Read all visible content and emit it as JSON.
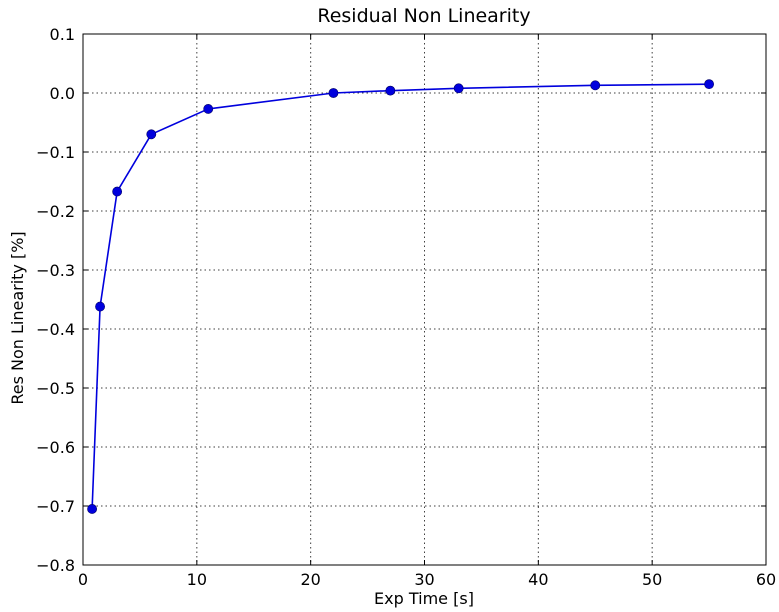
{
  "chart_data": {
    "type": "line",
    "title": "Residual Non Linearity",
    "xlabel": "Exp Time [s]",
    "ylabel": "Res Non Linearity [%]",
    "xlim": [
      0,
      60
    ],
    "ylim": [
      -0.8,
      0.1
    ],
    "xticks": [
      0,
      10,
      20,
      30,
      40,
      50,
      60
    ],
    "xtick_labels": [
      "0",
      "10",
      "20",
      "30",
      "40",
      "50",
      "60"
    ],
    "yticks": [
      0.1,
      0.0,
      -0.1,
      -0.2,
      -0.3,
      -0.4,
      -0.5,
      -0.6,
      -0.7,
      -0.8
    ],
    "ytick_labels": [
      "0.1",
      "0.0",
      "−0.1",
      "−0.2",
      "−0.3",
      "−0.4",
      "−0.5",
      "−0.6",
      "−0.7",
      "−0.8"
    ],
    "grid": true,
    "series": [
      {
        "color": "#0000dd",
        "marker": "circle",
        "x": [
          0.8,
          1.5,
          3.0,
          6.0,
          11.0,
          22.0,
          27.0,
          33.0,
          45.0,
          55.0
        ],
        "y": [
          -0.705,
          -0.362,
          -0.167,
          -0.07,
          -0.027,
          0.0,
          0.004,
          0.008,
          0.013,
          0.015
        ]
      }
    ]
  }
}
